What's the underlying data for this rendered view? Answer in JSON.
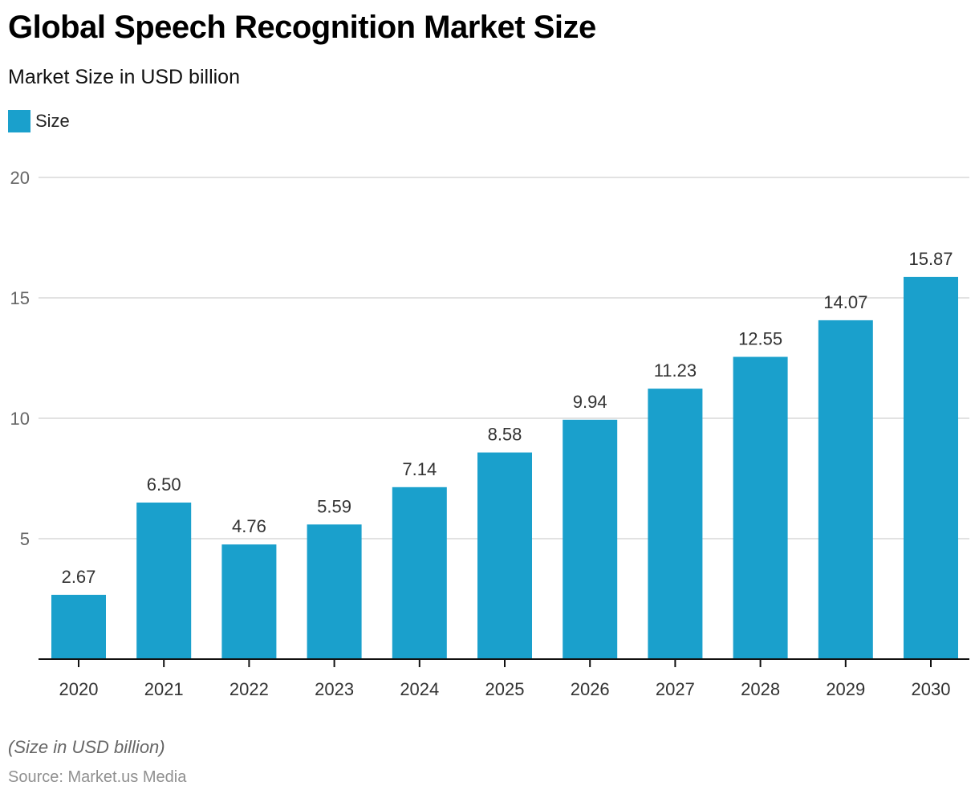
{
  "header": {
    "title": "Global Speech Recognition Market Size",
    "subtitle": "Market Size in USD billion"
  },
  "legend": {
    "label": "Size",
    "color": "#1aa0cc"
  },
  "footer": {
    "note": "(Size in USD billion)",
    "source": "Source: Market.us Media"
  },
  "chart_data": {
    "type": "bar",
    "title": "Global Speech Recognition Market Size",
    "subtitle": "Market Size in USD billion",
    "xlabel": "",
    "ylabel": "",
    "categories": [
      "2020",
      "2021",
      "2022",
      "2023",
      "2024",
      "2025",
      "2026",
      "2027",
      "2028",
      "2029",
      "2030"
    ],
    "series": [
      {
        "name": "Size",
        "color": "#1aa0cc",
        "values": [
          2.67,
          6.5,
          4.76,
          5.59,
          7.14,
          8.58,
          9.94,
          11.23,
          12.55,
          14.07,
          15.87
        ],
        "labels": [
          "2.67",
          "6.50",
          "4.76",
          "5.59",
          "7.14",
          "8.58",
          "9.94",
          "11.23",
          "12.55",
          "14.07",
          "15.87"
        ]
      }
    ],
    "ylim": [
      0,
      20
    ],
    "yticks": [
      5,
      10,
      15,
      20
    ],
    "grid": true,
    "legend_position": "top-left"
  }
}
